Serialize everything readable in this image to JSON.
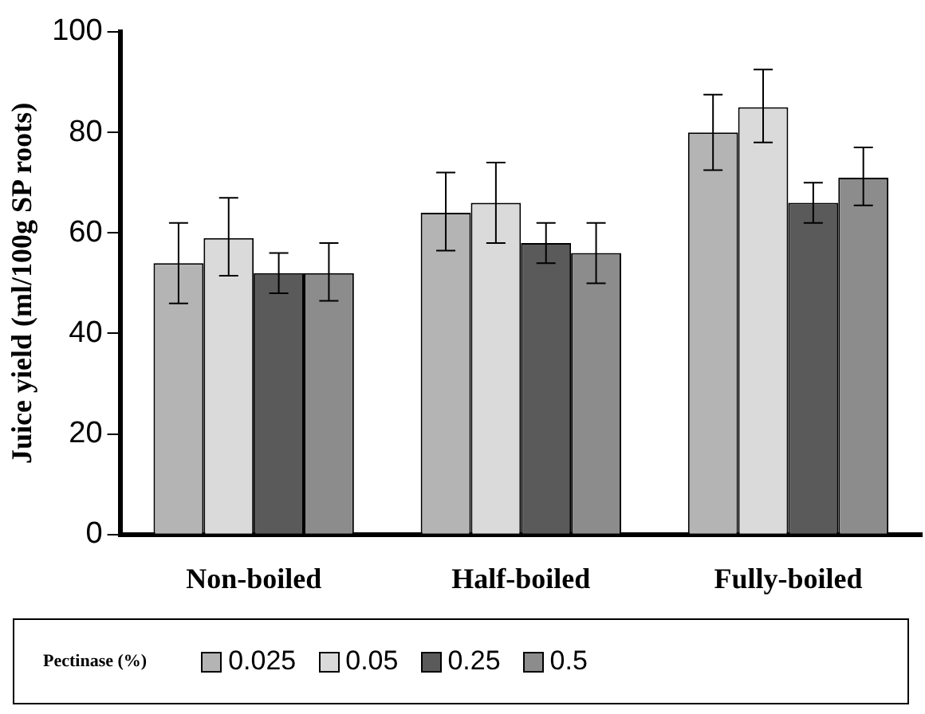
{
  "chart_data": {
    "type": "bar",
    "ylabel": "Juice yield (ml/100g SP roots)",
    "legend_title": "Pectinase (%)",
    "legend": "bottom",
    "grid": false,
    "categories": [
      "Non-boiled",
      "Half-boiled",
      "Fully-boiled"
    ],
    "ylim": [
      0,
      100
    ],
    "yticks": [
      0,
      20,
      40,
      60,
      80,
      100
    ],
    "series": [
      {
        "name": "0.025",
        "color": "#b4b4b4",
        "values": [
          54,
          64,
          80
        ],
        "errors": [
          [
            46,
            62
          ],
          [
            56.5,
            72
          ],
          [
            72.5,
            87.5
          ]
        ]
      },
      {
        "name": "0.05",
        "color": "#dadada",
        "values": [
          59,
          66,
          85
        ],
        "errors": [
          [
            51.5,
            67
          ],
          [
            58,
            74
          ],
          [
            78,
            92.5
          ]
        ]
      },
      {
        "name": "0.25",
        "color": "#5a5a5a",
        "values": [
          52,
          58,
          66
        ],
        "errors": [
          [
            48,
            56
          ],
          [
            54,
            62
          ],
          [
            62,
            70
          ]
        ]
      },
      {
        "name": "0.5",
        "color": "#8c8c8c",
        "values": [
          52,
          56,
          71
        ],
        "errors": [
          [
            46.5,
            58
          ],
          [
            50,
            62
          ],
          [
            65.5,
            77
          ]
        ]
      }
    ]
  }
}
